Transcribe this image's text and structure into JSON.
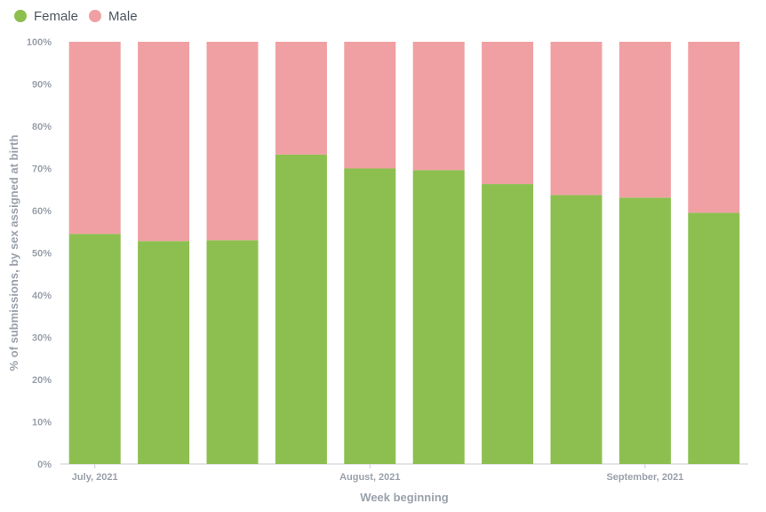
{
  "chart_data": {
    "type": "bar",
    "stacked": true,
    "categories": [
      "",
      "",
      "",
      "",
      "",
      "",
      "",
      "",
      "",
      ""
    ],
    "series": [
      {
        "name": "Female",
        "values": [
          54.5,
          52.8,
          53.0,
          73.3,
          70.0,
          69.6,
          66.3,
          63.7,
          63.1,
          59.5
        ],
        "color": "#8cbf4f"
      },
      {
        "name": "Male",
        "values": [
          45.5,
          47.2,
          47.0,
          26.7,
          30.0,
          30.4,
          33.7,
          36.3,
          36.9,
          40.5
        ],
        "color": "#f0a0a3"
      }
    ],
    "ylim": [
      0,
      100
    ],
    "yticks": [
      "0%",
      "10%",
      "20%",
      "30%",
      "40%",
      "50%",
      "60%",
      "70%",
      "80%",
      "90%",
      "100%"
    ],
    "xlabel": "Week beginning",
    "ylabel": "% of submissions, by sex assigned at birth",
    "xticks": [
      {
        "label": "July, 2021",
        "index": 0
      },
      {
        "label": "August, 2021",
        "index": 4
      },
      {
        "label": "September, 2021",
        "index": 8
      }
    ],
    "legend_position": "top-left",
    "grid": false
  },
  "legend": {
    "female_label": "Female",
    "male_label": "Male"
  }
}
